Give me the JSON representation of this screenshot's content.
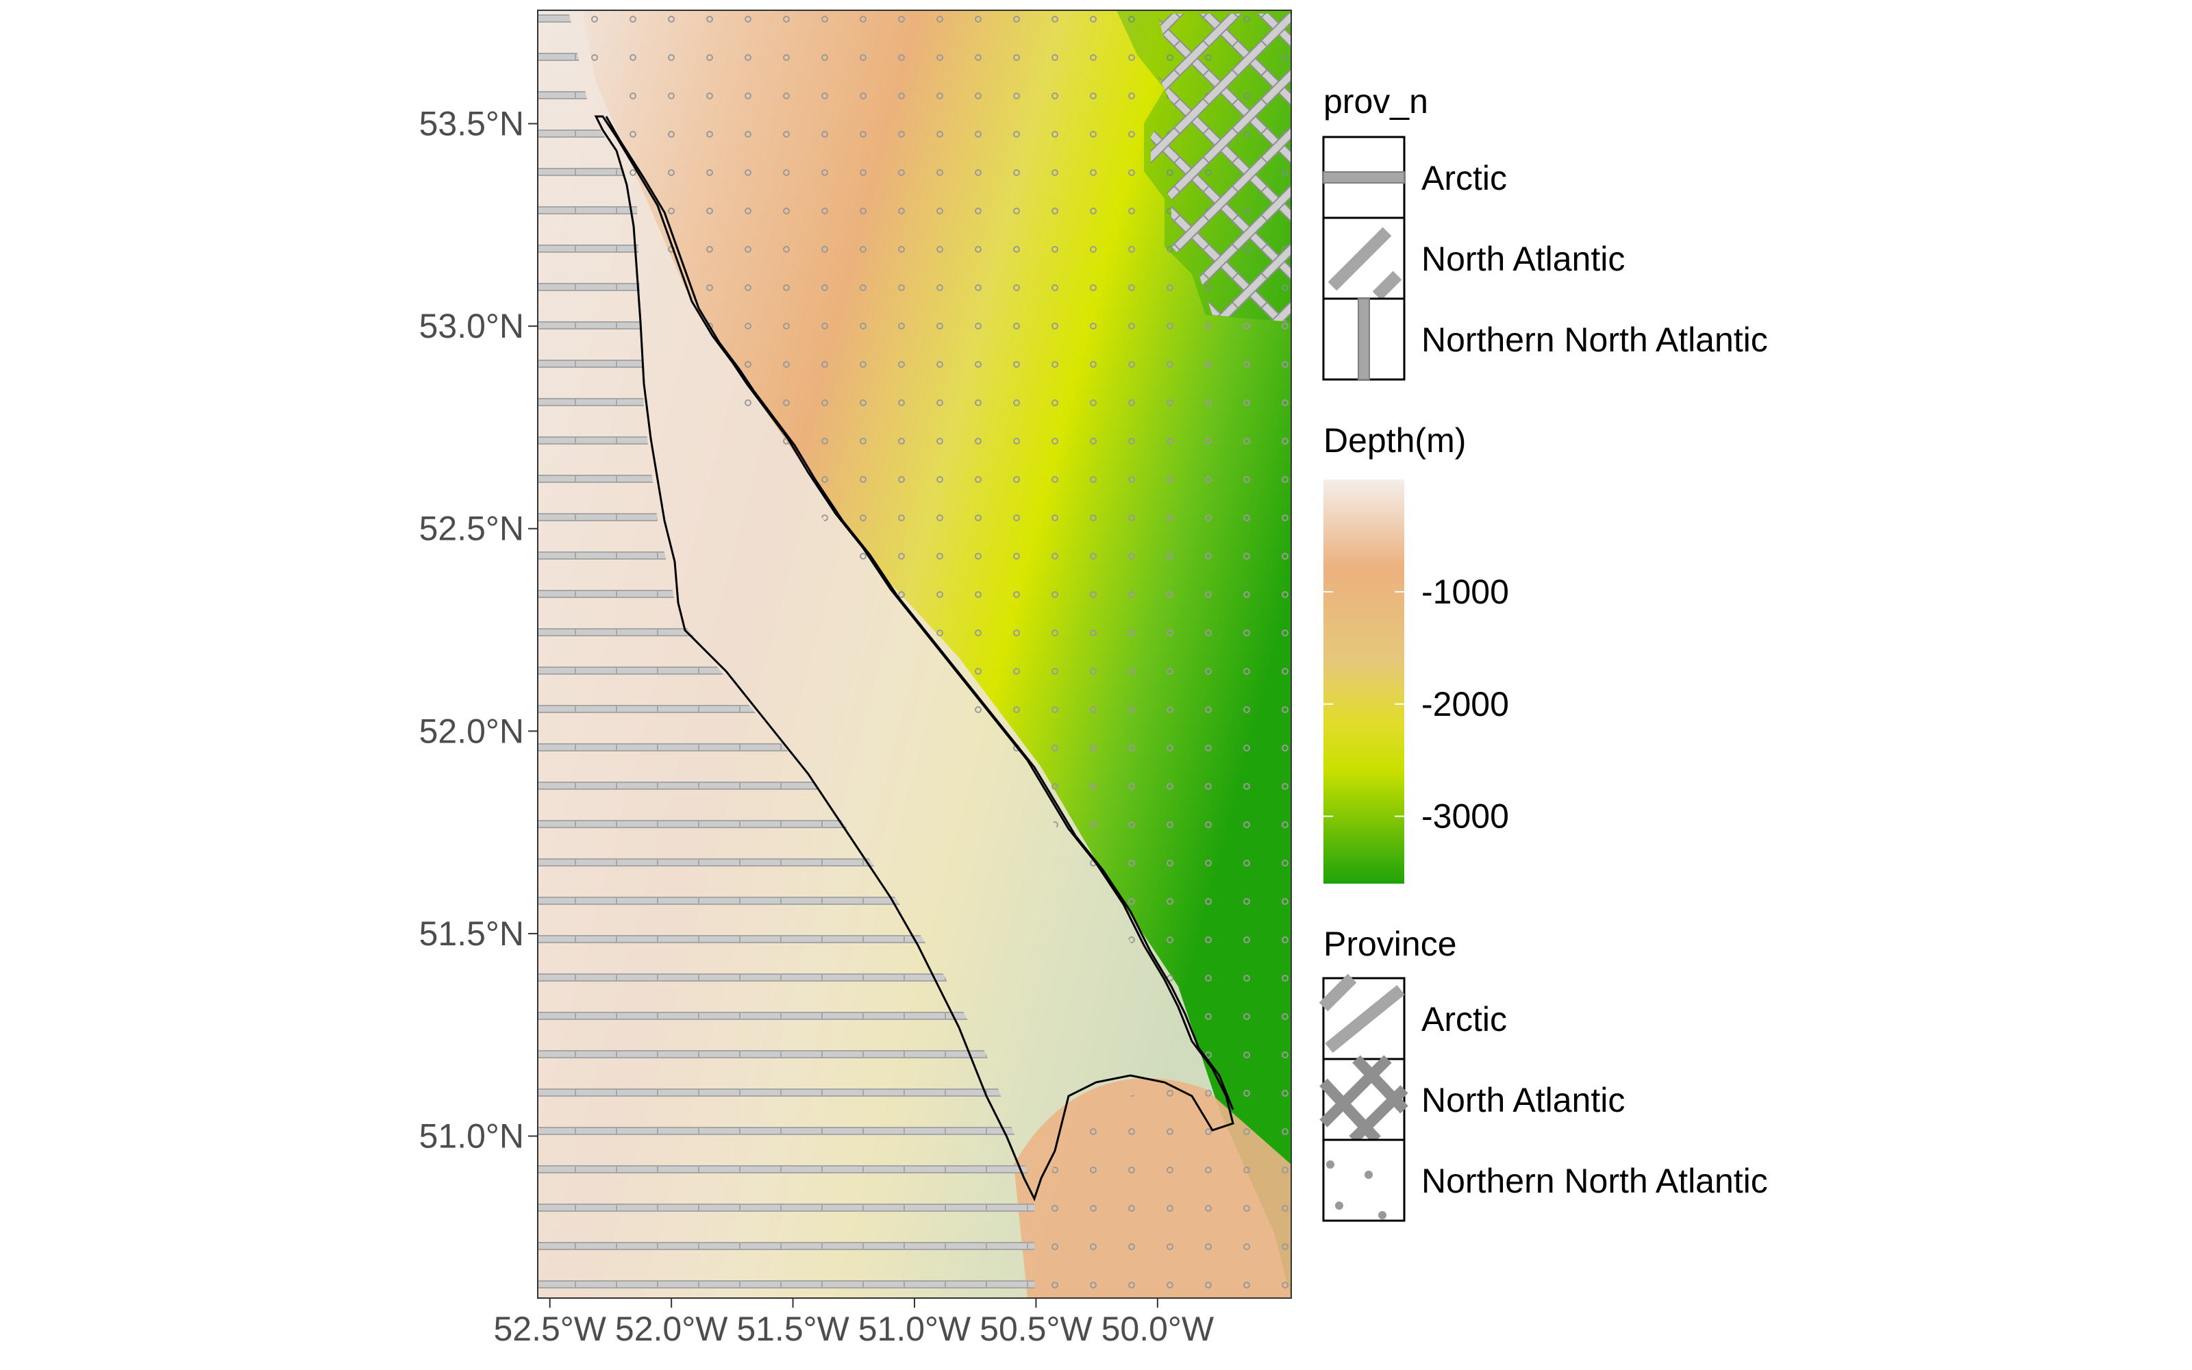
{
  "map": {
    "lon_ticks": [
      "52.5°W",
      "52.0°W",
      "51.5°W",
      "51.0°W",
      "50.5°W",
      "50.0°W"
    ],
    "lat_ticks": [
      "53.5°N",
      "53.0°N",
      "52.5°N",
      "52.0°N",
      "51.5°N",
      "51.0°N"
    ],
    "lon_range": [
      -52.55,
      -49.45
    ],
    "lat_range": [
      50.6,
      53.78
    ],
    "colors": {
      "deep": "#1fa30a",
      "mid": "#e6e600",
      "shallow": "#ecb17f",
      "land": "#f2f2f2",
      "pattern": "#b3b3b3",
      "outline": "#000000"
    }
  },
  "legends": {
    "prov_n": {
      "title": "prov_n",
      "items": [
        "Arctic",
        "North Atlantic",
        "Northern North Atlantic"
      ],
      "patterns": [
        "horizontal-stripe",
        "diagonal-stripe",
        "vertical-stripe"
      ]
    },
    "depth": {
      "title": "Depth(m)",
      "labels": [
        "-1000",
        "-2000",
        "-3000"
      ],
      "values": [
        -1000,
        -2000,
        -3000
      ],
      "range": [
        0,
        -3600
      ]
    },
    "province": {
      "title": "Province",
      "items": [
        "Arctic",
        "North Atlantic",
        "Northern North Atlantic"
      ],
      "patterns": [
        "diagonal-stripe",
        "crosshatch",
        "dots"
      ]
    }
  }
}
